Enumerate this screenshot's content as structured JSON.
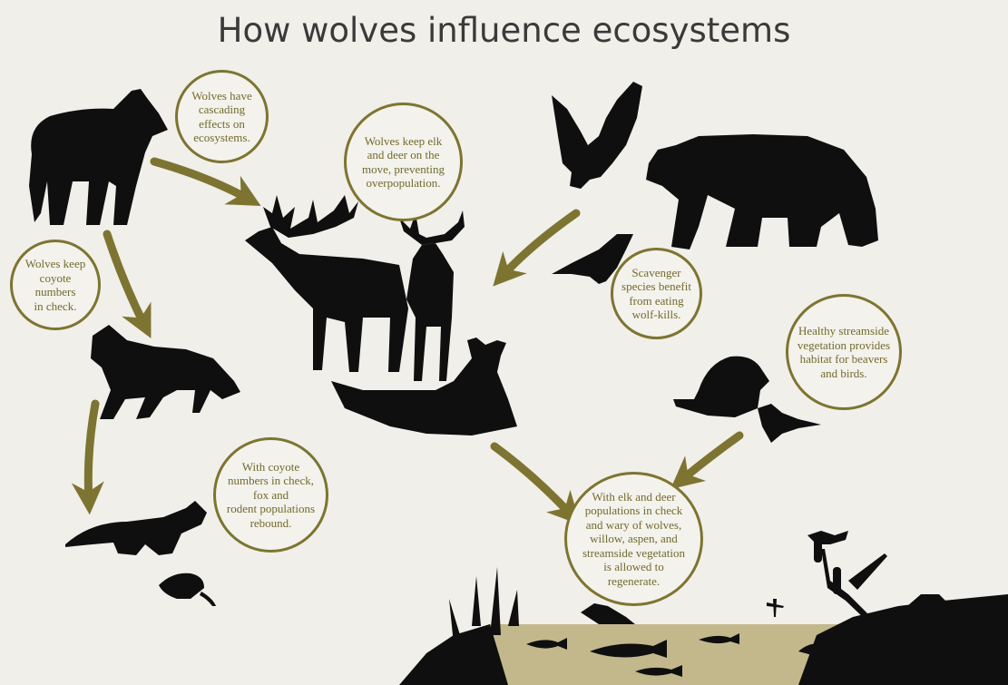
{
  "title": "How wolves influence ecosystems",
  "colors": {
    "background": "#f0efe9",
    "accent": "#7d7431",
    "text": "#736a2e",
    "silhouette": "#0f0f0f",
    "water": "#c2b88c"
  },
  "bubbles": {
    "cascading": "Wolves have\ncascading\neffects on\necosystems.",
    "elk_deer": "Wolves keep elk\nand deer on the\nmove, preventing\noverpopulation.",
    "scavenger": "Scavenger\nspecies benefit\nfrom eating\nwolf-kills.",
    "coyote": "Wolves keep\ncoyote\nnumbers\nin check.",
    "streamside": "Healthy streamside\nvegetation provides\nhabitat for beavers\nand birds.",
    "fox_rodent": "With coyote\nnumbers in check,\nfox and\nrodent populations\nrebound.",
    "vegetation": "With elk and deer\npopulations in check\nand wary of wolves,\nwillow, aspen, and\nstreamside vegetation\nis allowed to\nregenerate."
  },
  "icons": [
    "wolf-icon",
    "elk-icon",
    "deer-icon",
    "fawn-icon",
    "eagle-icon",
    "bear-icon",
    "raven-icon",
    "coyote-icon",
    "beaver-icon",
    "songbird-icon",
    "fox-icon",
    "mouse-icon",
    "fish-icon",
    "frog-icon",
    "dragonfly-icon",
    "cattail-icon",
    "heron-icon"
  ]
}
